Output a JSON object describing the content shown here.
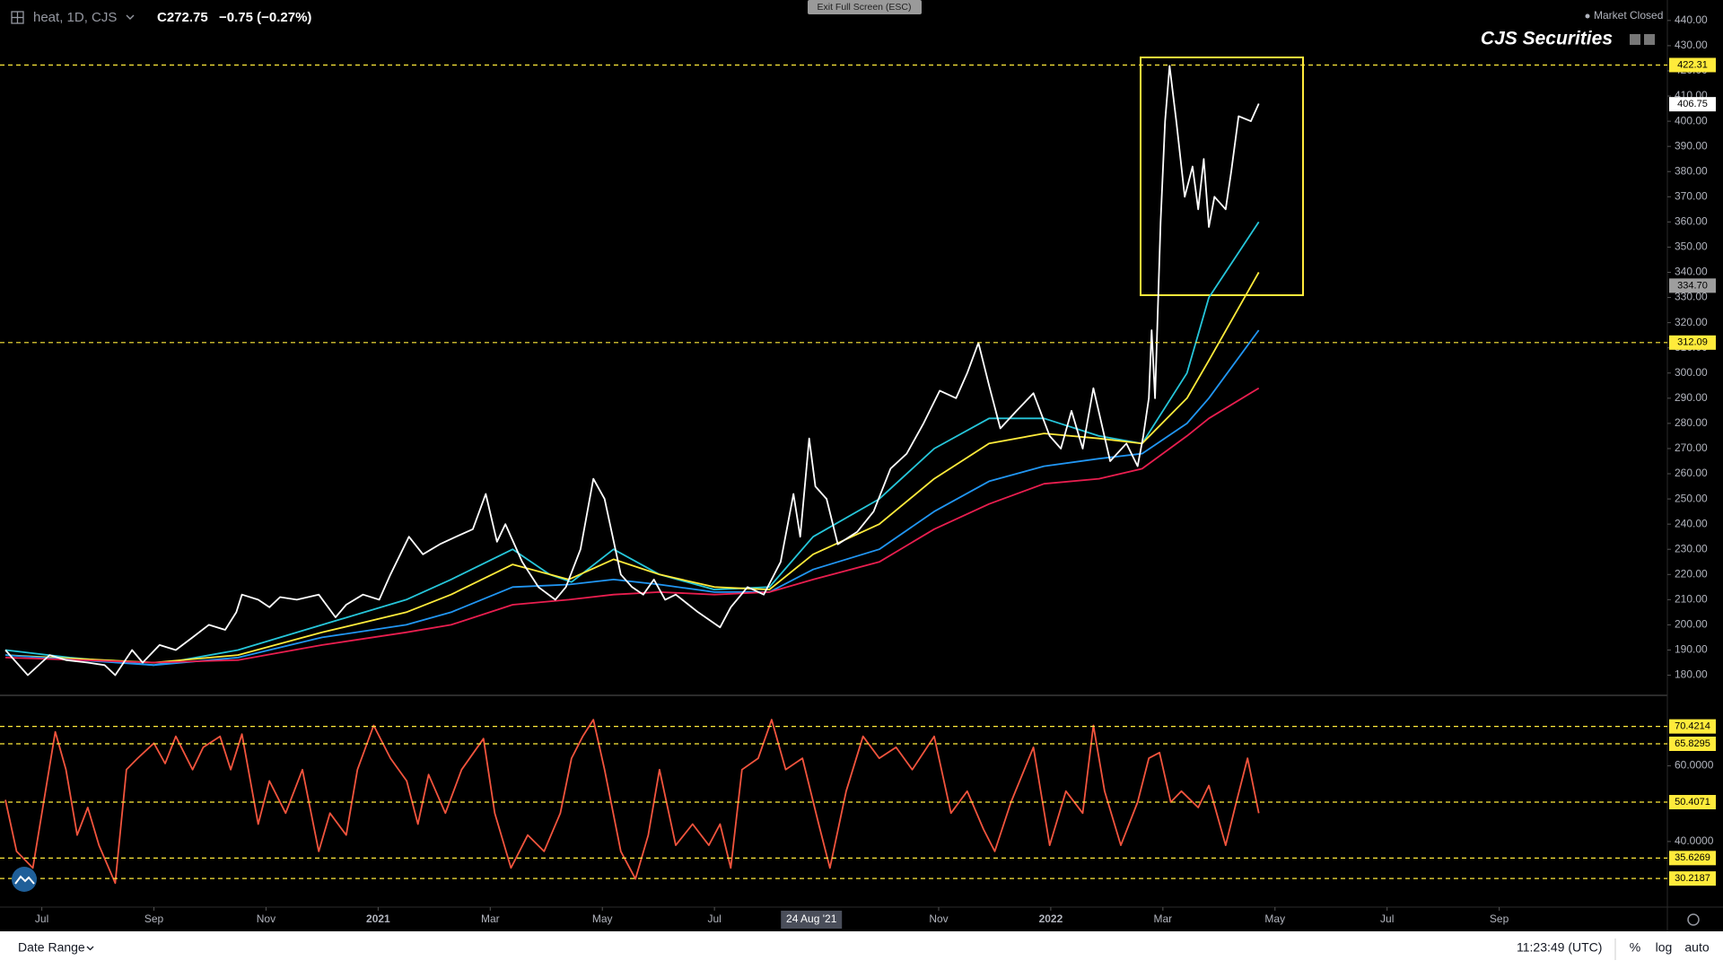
{
  "ui": {
    "symbol": "heat, 1D, CJS",
    "last": "C272.75",
    "change": "−0.75 (−0.27%)",
    "fullscreen": "Exit Full Screen (ESC)",
    "status": "Market Closed",
    "brand": "CJS Securities",
    "date_range": "Date Range",
    "clock": "11:23:49 (UTC)",
    "scale_buttons": [
      "%",
      "log",
      "auto"
    ]
  },
  "chart_data": [
    {
      "type": "line",
      "xlim": [
        -0.65,
        29.0
      ],
      "ylim": [
        172,
        446
      ],
      "yticks": [
        {
          "value": 180,
          "label": "180.00"
        },
        {
          "value": 190,
          "label": "190.00"
        },
        {
          "value": 200,
          "label": "200.00"
        },
        {
          "value": 210,
          "label": "210.00"
        },
        {
          "value": 220,
          "label": "220.00"
        },
        {
          "value": 230,
          "label": "230.00"
        },
        {
          "value": 240,
          "label": "240.00"
        },
        {
          "value": 250,
          "label": "250.00"
        },
        {
          "value": 260,
          "label": "260.00"
        },
        {
          "value": 270,
          "label": "270.00"
        },
        {
          "value": 280,
          "label": "280.00"
        },
        {
          "value": 290,
          "label": "290.00"
        },
        {
          "value": 300,
          "label": "300.00"
        },
        {
          "value": 310,
          "label": "310.00"
        },
        {
          "value": 320,
          "label": "320.00"
        },
        {
          "value": 330,
          "label": "330.00"
        },
        {
          "value": 340,
          "label": "340.00"
        },
        {
          "value": 350,
          "label": "350.00"
        },
        {
          "value": 360,
          "label": "360.00"
        },
        {
          "value": 370,
          "label": "370.00"
        },
        {
          "value": 380,
          "label": "380.00"
        },
        {
          "value": 390,
          "label": "390.00"
        },
        {
          "value": 400,
          "label": "400.00"
        },
        {
          "value": 410,
          "label": "410.00"
        },
        {
          "value": 420,
          "label": "420.00"
        },
        {
          "value": 430,
          "label": "430.00"
        },
        {
          "value": 440,
          "label": "440.00"
        }
      ],
      "hlines": [
        422.31,
        312.09
      ],
      "hline_color": "#ffeb3b",
      "markers": [
        406.75,
        {
          "value": 334.7,
          "label": "334.70"
        }
      ],
      "marker_colors": [
        "#ffffff",
        "#9e9e9e"
      ],
      "x_marker": {
        "value": 13.73,
        "label": "24 Aug '21"
      },
      "series": [
        {
          "color": "#26c6da",
          "x": [
            -0.65,
            0.5,
            2,
            3.5,
            5,
            6.5,
            7.3,
            8.4,
            9.06,
            9.45,
            10.2,
            11.02,
            12.0,
            12.98,
            13.76,
            14.94,
            15.92,
            16.9,
            17.88,
            18.86,
            19.63,
            20.43,
            20.82,
            21.71
          ],
          "values": [
            190,
            187,
            184,
            190,
            200,
            210,
            218,
            230,
            220,
            217,
            230,
            220,
            214,
            215,
            235,
            250,
            270,
            282,
            282,
            275,
            272,
            300,
            330,
            360
          ]
        },
        {
          "color": "#ffeb3b",
          "x": [
            -0.65,
            2,
            3.5,
            5,
            6.5,
            7.3,
            8.4,
            9.4,
            10.2,
            11.02,
            12.0,
            12.98,
            13.76,
            14.94,
            15.92,
            16.9,
            17.88,
            18.86,
            19.63,
            20.43,
            20.82,
            21.71
          ],
          "values": [
            188,
            185,
            188,
            197,
            205,
            212,
            224,
            218,
            226,
            220,
            215,
            214,
            228,
            240,
            258,
            272,
            276,
            274,
            272,
            290,
            305,
            340
          ]
        },
        {
          "color": "#2196f3",
          "x": [
            -0.65,
            2,
            3.5,
            5,
            6.5,
            7.3,
            8.4,
            9.4,
            10.2,
            11.02,
            12.0,
            12.98,
            13.76,
            14.94,
            15.92,
            16.9,
            17.88,
            18.86,
            19.63,
            20.43,
            20.82,
            21.71
          ],
          "values": [
            188,
            184,
            187,
            195,
            200,
            205,
            215,
            216,
            218,
            216,
            213,
            213,
            222,
            230,
            245,
            257,
            263,
            266,
            268,
            280,
            290,
            317
          ]
        },
        {
          "color": "#e91e4f",
          "x": [
            -0.65,
            2,
            3.5,
            5,
            6.5,
            7.3,
            8.4,
            9.4,
            10.2,
            11.02,
            12.0,
            12.98,
            13.76,
            14.94,
            15.92,
            16.9,
            17.88,
            18.86,
            19.63,
            20.43,
            20.82,
            21.71
          ],
          "values": [
            187,
            185,
            186,
            192,
            197,
            200,
            208,
            210,
            212,
            213,
            212,
            213,
            218,
            225,
            238,
            248,
            256,
            258,
            262,
            275,
            282,
            294
          ]
        },
        {
          "color": "#ffffff",
          "x": [
            -0.65,
            -0.25,
            0.14,
            0.43,
            0.82,
            1.12,
            1.31,
            1.61,
            1.8,
            2.1,
            2.39,
            2.69,
            2.98,
            3.27,
            3.47,
            3.57,
            3.86,
            4.06,
            4.25,
            4.55,
            4.94,
            5.24,
            5.43,
            5.73,
            6.02,
            6.22,
            6.55,
            6.8,
            7.1,
            7.39,
            7.69,
            7.92,
            8.12,
            8.27,
            8.57,
            8.86,
            9.16,
            9.35,
            9.61,
            9.84,
            10.04,
            10.33,
            10.53,
            10.73,
            10.92,
            11.12,
            11.31,
            11.71,
            12.1,
            12.29,
            12.59,
            12.88,
            13.18,
            13.41,
            13.53,
            13.69,
            13.8,
            14.0,
            14.2,
            14.55,
            14.84,
            15.14,
            15.43,
            15.73,
            16.02,
            16.31,
            16.51,
            16.71,
            16.9,
            17.1,
            17.39,
            17.69,
            17.98,
            18.18,
            18.37,
            18.57,
            18.76,
            19.06,
            19.35,
            19.55,
            19.65,
            19.75,
            19.8,
            19.86,
            19.96,
            20.04,
            20.12,
            20.24,
            20.39,
            20.53,
            20.63,
            20.73,
            20.82,
            20.92,
            21.12,
            21.22,
            21.35,
            21.57,
            21.71
          ],
          "values": [
            190,
            180,
            188,
            186,
            185,
            184,
            180,
            190,
            185,
            192,
            190,
            195,
            200,
            198,
            205,
            212,
            210,
            207,
            211,
            210,
            212,
            203,
            208,
            212,
            210,
            220,
            235,
            228,
            232,
            235,
            238,
            252,
            233,
            240,
            225,
            215,
            210,
            215,
            230,
            258,
            250,
            220,
            215,
            212,
            218,
            210,
            212,
            205,
            199,
            207,
            215,
            212,
            225,
            252,
            235,
            274,
            255,
            250,
            232,
            237,
            245,
            262,
            268,
            280,
            293,
            290,
            300,
            312,
            295,
            278,
            285,
            292,
            275,
            270,
            285,
            270,
            294,
            265,
            272,
            263,
            275,
            290,
            317,
            290,
            360,
            400,
            422,
            400,
            370,
            382,
            365,
            385,
            358,
            370,
            365,
            380,
            402,
            400,
            407
          ]
        }
      ]
    },
    {
      "type": "line",
      "xlim": [
        -0.65,
        29.0
      ],
      "ylim": [
        22.9,
        76.5
      ],
      "yticks": [
        {
          "value": 40,
          "label": "40.0000"
        },
        {
          "value": 60,
          "label": "60.0000"
        }
      ],
      "hlines": [
        70.4214,
        65.8295,
        50.4071,
        35.6269,
        30.2187
      ],
      "hline_color": "#ffeb3b",
      "xticks": [
        {
          "value": 0,
          "label": "Jul"
        },
        {
          "value": 2,
          "label": "Sep"
        },
        {
          "value": 4,
          "label": "Nov"
        },
        {
          "value": 6,
          "label": "2021"
        },
        {
          "value": 8,
          "label": "Mar"
        },
        {
          "value": 10,
          "label": "May"
        },
        {
          "value": 12,
          "label": "Jul"
        },
        {
          "value": 16,
          "label": "Nov"
        },
        {
          "value": 18,
          "label": "2022"
        },
        {
          "value": 20,
          "label": "Mar"
        },
        {
          "value": 22,
          "label": "May"
        },
        {
          "value": 24,
          "label": "Jul"
        },
        {
          "value": 26,
          "label": "Sep"
        }
      ],
      "series": [
        {
          "color": "#f2543d",
          "x": [
            -0.65,
            -0.45,
            -0.16,
            0.24,
            0.43,
            0.63,
            0.82,
            1.02,
            1.31,
            1.51,
            1.71,
            2.0,
            2.2,
            2.39,
            2.69,
            2.88,
            3.18,
            3.37,
            3.57,
            3.86,
            4.06,
            4.35,
            4.65,
            4.94,
            5.14,
            5.43,
            5.63,
            5.92,
            6.22,
            6.51,
            6.71,
            6.9,
            7.2,
            7.49,
            7.88,
            8.08,
            8.37,
            8.67,
            8.96,
            9.25,
            9.45,
            9.65,
            9.84,
            10.04,
            10.33,
            10.59,
            10.82,
            11.02,
            11.31,
            11.61,
            11.9,
            12.1,
            12.29,
            12.49,
            12.78,
            13.02,
            13.27,
            13.57,
            13.86,
            14.06,
            14.35,
            14.65,
            14.94,
            15.24,
            15.53,
            15.92,
            16.22,
            16.51,
            16.8,
            17.0,
            17.29,
            17.69,
            17.98,
            18.27,
            18.57,
            18.76,
            18.96,
            19.25,
            19.55,
            19.75,
            19.94,
            20.14,
            20.33,
            20.63,
            20.82,
            21.12,
            21.31,
            21.51,
            21.71
          ],
          "values": [
            51,
            37.4,
            33,
            69,
            59,
            41.7,
            49,
            39,
            29,
            59,
            62,
            66,
            60.6,
            67.8,
            59,
            64.9,
            67.8,
            59,
            68.4,
            44.6,
            56,
            47.5,
            59,
            37.4,
            47.5,
            41.7,
            59,
            70.7,
            62,
            56,
            44.6,
            57.7,
            47.5,
            59,
            67.2,
            47.5,
            33,
            41.7,
            37.4,
            47.5,
            62,
            67.8,
            72.2,
            59,
            37.4,
            30.1,
            41.7,
            59,
            39,
            44.6,
            39,
            44.6,
            33,
            59,
            62,
            72.2,
            59,
            62,
            44.6,
            33,
            53.3,
            67.8,
            62,
            64.9,
            59,
            67.8,
            47.5,
            53.3,
            43.2,
            37.4,
            50.4,
            64.9,
            39,
            53.3,
            47.5,
            70.7,
            53.3,
            39,
            50.4,
            62,
            63.5,
            50.4,
            53.3,
            49,
            54.8,
            39,
            50.4,
            62,
            47.5
          ]
        }
      ]
    }
  ]
}
